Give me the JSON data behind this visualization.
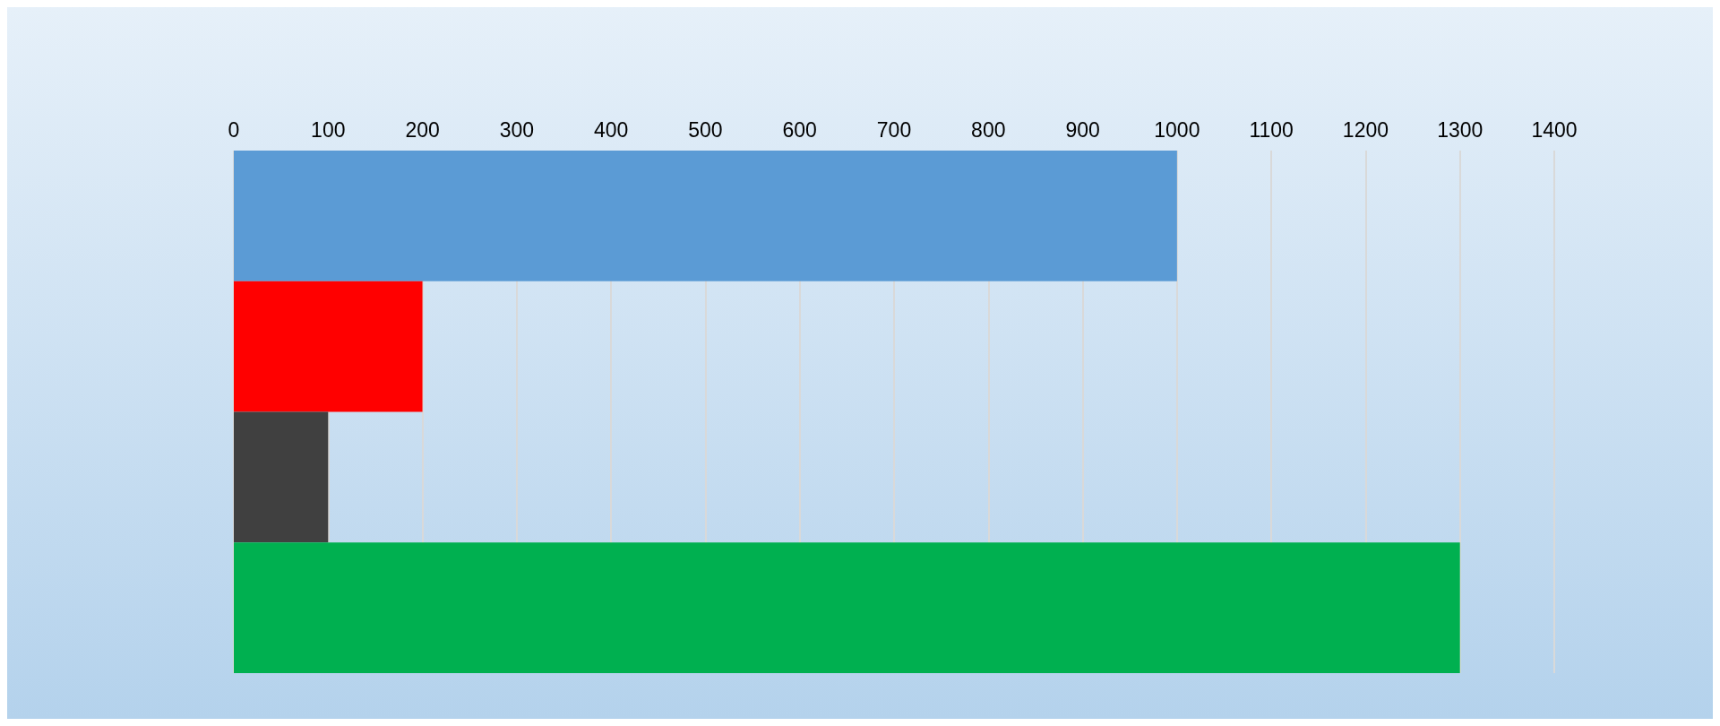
{
  "chart_data": {
    "type": "bar",
    "orientation": "horizontal",
    "categories": [
      null,
      null,
      null,
      null
    ],
    "values": [
      1000,
      200,
      100,
      1300
    ],
    "colors": [
      "#5b9bd5",
      "#ff0000",
      "#404040",
      "#00b050"
    ],
    "xlim": [
      0,
      1400
    ],
    "xticks": [
      0,
      100,
      200,
      300,
      400,
      500,
      600,
      700,
      800,
      900,
      1000,
      1100,
      1200,
      1300,
      1400
    ],
    "grid": "x"
  }
}
